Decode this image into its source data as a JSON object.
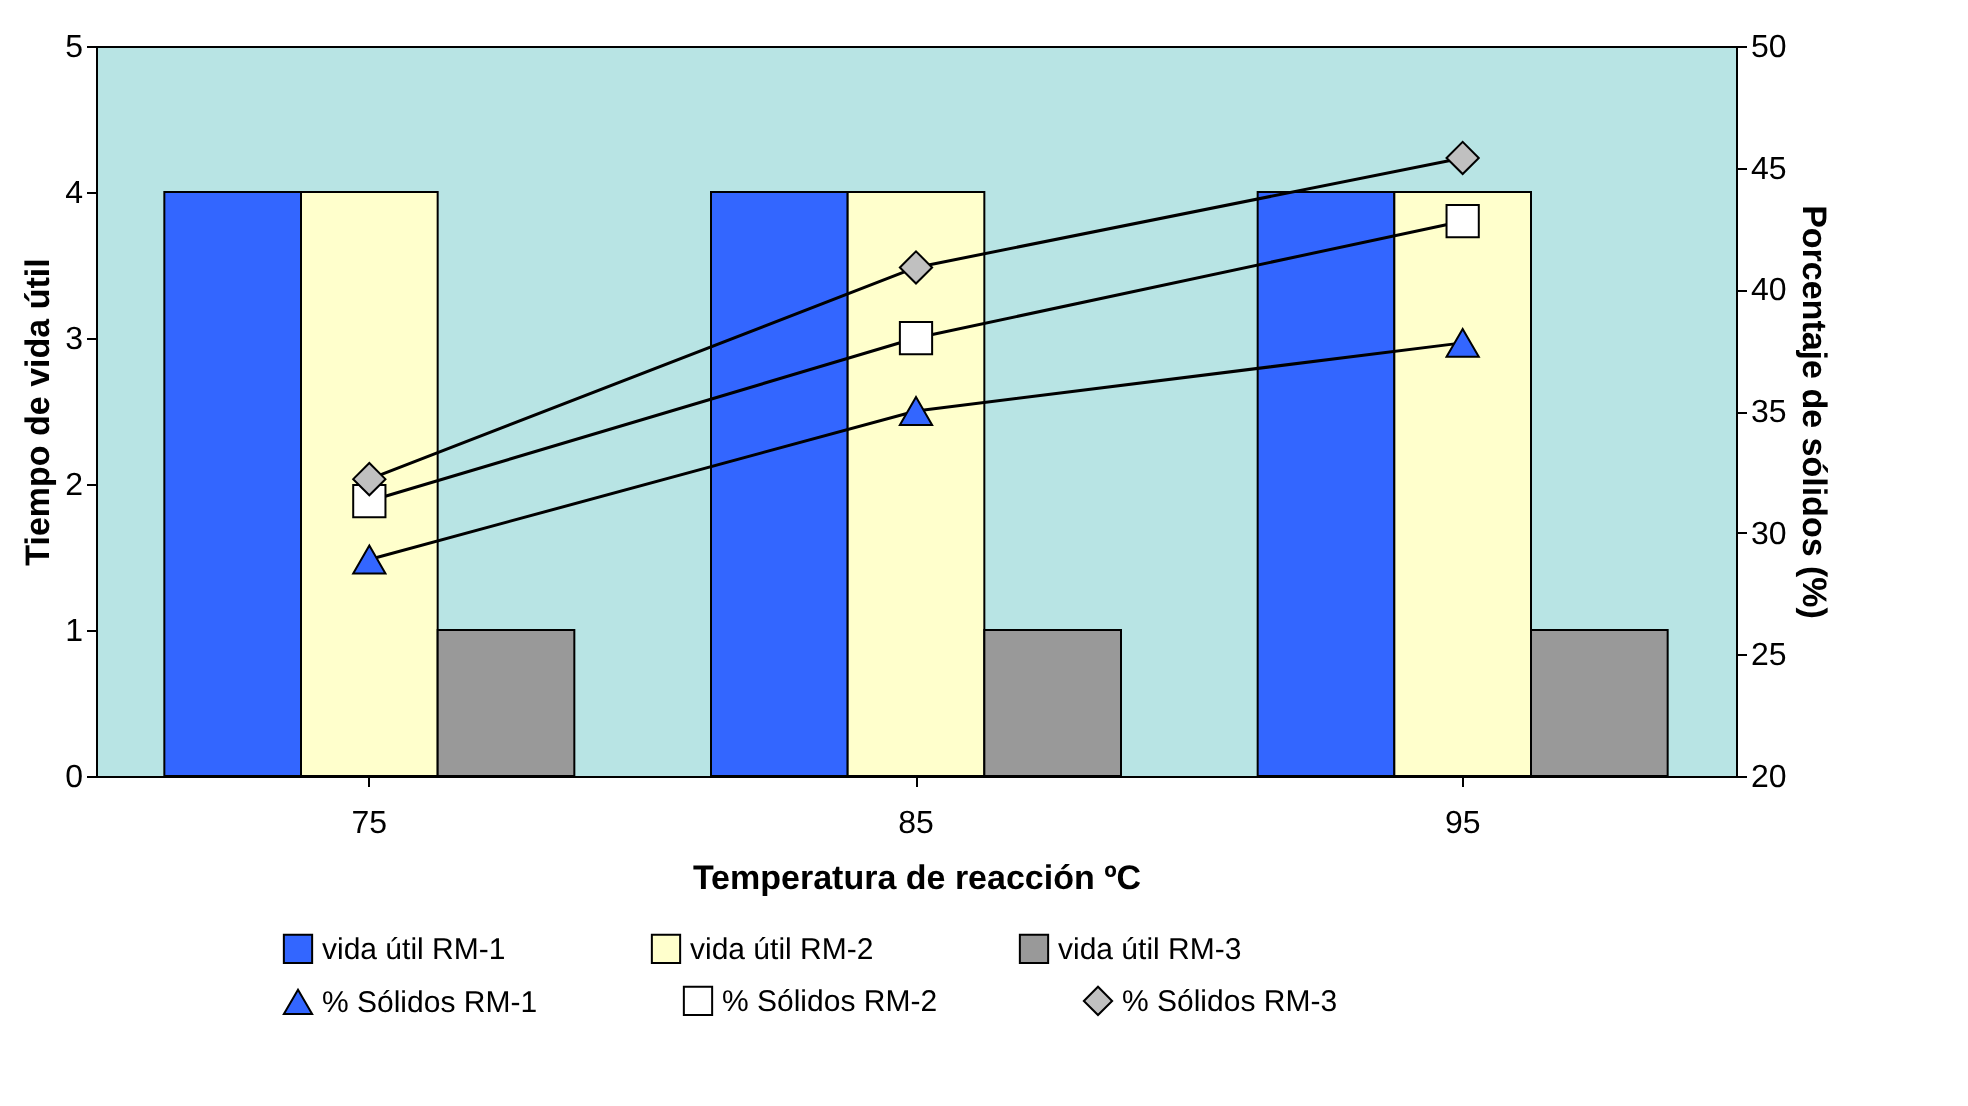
{
  "chart_data": {
    "type": "bar",
    "xlabel": "Temperatura de reacción ºC",
    "ylabel": "Tiempo de vida útil",
    "y2label": "Porcentaje de sólidos (%)",
    "categories": [
      "75",
      "85",
      "95"
    ],
    "series": [
      {
        "name": "vida útil RM-1",
        "color": "#3366ff",
        "values": [
          4,
          4,
          4
        ]
      },
      {
        "name": "vida útil RM-2",
        "color": "#ffffcc",
        "values": [
          4,
          4,
          4
        ]
      },
      {
        "name": "vida útil RM-3",
        "color": "#999999",
        "values": [
          1,
          1,
          1
        ]
      },
      {
        "name": "% Sólidos RM-1",
        "type": "line",
        "axis": "y2",
        "marker": "triangle",
        "color": "#3366ff",
        "values": [
          28.9,
          35,
          37.8
        ]
      },
      {
        "name": "% Sólidos RM-2",
        "type": "line",
        "axis": "y2",
        "marker": "square",
        "color": "#ffffff",
        "values": [
          31.3,
          38,
          42.8
        ]
      },
      {
        "name": "% Sólidos RM-3",
        "type": "line",
        "axis": "y2",
        "marker": "diamond",
        "color": "#c0c0c0",
        "values": [
          32.2,
          40.9,
          45.4
        ]
      }
    ],
    "ylim": [
      0,
      5
    ],
    "yticks": [
      0,
      1,
      2,
      3,
      4,
      5
    ],
    "y2lim": [
      20,
      50
    ],
    "y2ticks": [
      20,
      25,
      30,
      35,
      40,
      45,
      50
    ],
    "grid": false,
    "legend": "bottom"
  }
}
